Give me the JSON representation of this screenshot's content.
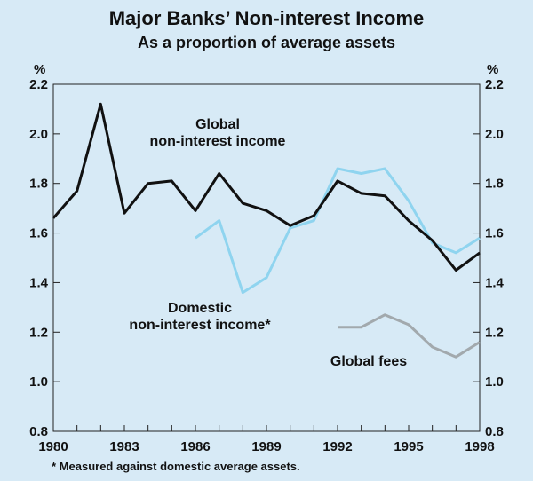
{
  "chart_data": {
    "type": "line",
    "title": "Major Banks’ Non-interest Income",
    "subtitle": "As a proportion of average assets",
    "y_unit_left": "%",
    "y_unit_right": "%",
    "ylim": [
      0.8,
      2.2
    ],
    "yticks": [
      "0.8",
      "1.0",
      "1.2",
      "1.4",
      "1.6",
      "1.8",
      "2.0",
      "2.2"
    ],
    "xlim": [
      1980,
      1998
    ],
    "xticks": [
      "1980",
      "1983",
      "1986",
      "1989",
      "1992",
      "1995",
      "1998"
    ],
    "grid": false,
    "series": [
      {
        "name": "Global non-interest income",
        "label_lines": [
          "Global",
          "non-interest income"
        ],
        "color": "#111111",
        "x": [
          1980,
          1981,
          1982,
          1983,
          1984,
          1985,
          1986,
          1987,
          1988,
          1989,
          1990,
          1991,
          1992,
          1993,
          1994,
          1995,
          1996,
          1997,
          1998
        ],
        "values": [
          1.66,
          1.77,
          2.12,
          1.68,
          1.8,
          1.81,
          1.69,
          1.84,
          1.72,
          1.69,
          1.63,
          1.67,
          1.81,
          1.76,
          1.75,
          1.65,
          1.57,
          1.45,
          1.52
        ]
      },
      {
        "name": "Domestic non-interest income*",
        "label_lines": [
          "Domestic",
          "non-interest income*"
        ],
        "color": "#8fd4ef",
        "x": [
          1986,
          1987,
          1988,
          1989,
          1990,
          1991,
          1992,
          1993,
          1994,
          1995,
          1996,
          1997,
          1998
        ],
        "values": [
          1.58,
          1.65,
          1.36,
          1.42,
          1.62,
          1.65,
          1.86,
          1.84,
          1.86,
          1.73,
          1.56,
          1.52,
          1.58
        ]
      },
      {
        "name": "Global fees",
        "label_lines": [
          "Global fees"
        ],
        "color": "#a2a9ad",
        "x": [
          1992,
          1993,
          1994,
          1995,
          1996,
          1997,
          1998
        ],
        "values": [
          1.22,
          1.22,
          1.27,
          1.23,
          1.14,
          1.1,
          1.16
        ]
      }
    ],
    "footnote": "* Measured against domestic average assets."
  }
}
